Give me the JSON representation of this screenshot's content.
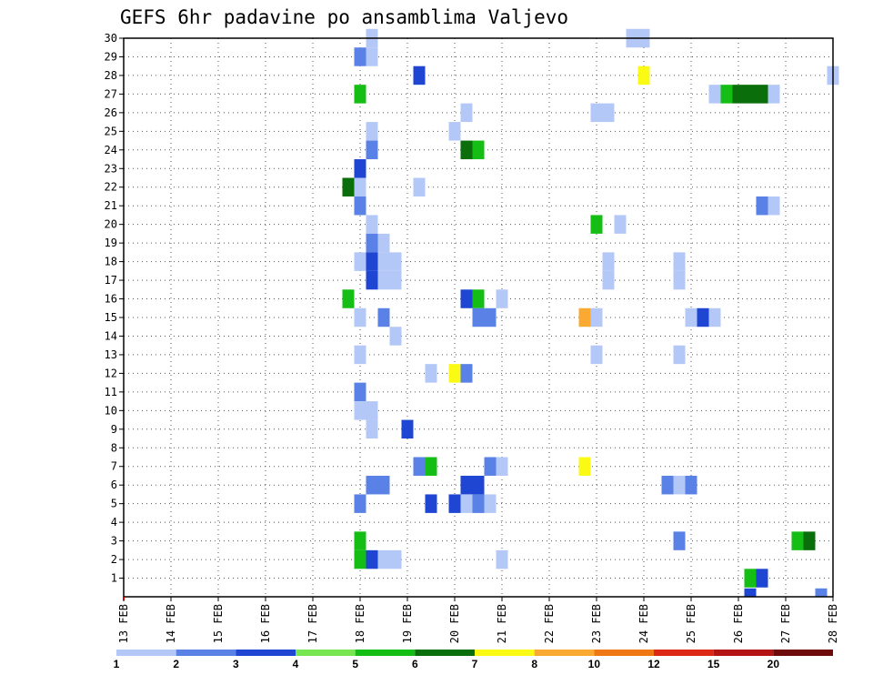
{
  "chart_data": {
    "type": "heatmap",
    "title": "GEFS 6hr padavine po ansamblima Valjevo",
    "xlabel": "",
    "ylabel": "",
    "x_ticks": [
      "13 FEB",
      "14 FEB",
      "15 FEB",
      "16 FEB",
      "17 FEB",
      "18 FEB",
      "19 FEB",
      "20 FEB",
      "21 FEB",
      "22 FEB",
      "23 FEB",
      "24 FEB",
      "25 FEB",
      "26 FEB",
      "27 FEB",
      "28 FEB"
    ],
    "y_ticks": [
      1,
      2,
      3,
      4,
      5,
      6,
      7,
      8,
      9,
      10,
      11,
      12,
      13,
      14,
      15,
      16,
      17,
      18,
      19,
      20,
      21,
      22,
      23,
      24,
      25,
      26,
      27,
      28,
      29,
      30
    ],
    "xlim": [
      0,
      15
    ],
    "ylim": [
      0,
      30
    ],
    "grid": true,
    "legend": {
      "placement": "bottom",
      "labels": [
        "1",
        "2",
        "3",
        "4",
        "5",
        "6",
        "7",
        "8",
        "10",
        "12",
        "15",
        "20"
      ],
      "colors": [
        "#b4c8f8",
        "#5a82e6",
        "#1e46d2",
        "#78e650",
        "#14be14",
        "#0a6e0a",
        "#fafa14",
        "#faaa32",
        "#f07814",
        "#dc2814",
        "#b41414",
        "#6e0a0a"
      ]
    },
    "cells": [
      {
        "x": 5.25,
        "y": 30,
        "v": 1
      },
      {
        "x": 10.75,
        "y": 30,
        "v": 1
      },
      {
        "x": 11,
        "y": 30,
        "v": 1
      },
      {
        "x": 5,
        "y": 29,
        "v": 2
      },
      {
        "x": 5.25,
        "y": 29,
        "v": 1
      },
      {
        "x": 6.25,
        "y": 28,
        "v": 3
      },
      {
        "x": 11,
        "y": 28,
        "v": 7
      },
      {
        "x": 15,
        "y": 28,
        "v": 1
      },
      {
        "x": 5,
        "y": 27,
        "v": 5
      },
      {
        "x": 12.5,
        "y": 27,
        "v": 1
      },
      {
        "x": 12.75,
        "y": 27,
        "v": 5
      },
      {
        "x": 13,
        "y": 27,
        "v": 6
      },
      {
        "x": 13.25,
        "y": 27,
        "v": 6
      },
      {
        "x": 13.5,
        "y": 27,
        "v": 6
      },
      {
        "x": 13.75,
        "y": 27,
        "v": 1
      },
      {
        "x": 7.25,
        "y": 26,
        "v": 1
      },
      {
        "x": 10,
        "y": 26,
        "v": 1
      },
      {
        "x": 10.25,
        "y": 26,
        "v": 1
      },
      {
        "x": 5.25,
        "y": 25,
        "v": 1
      },
      {
        "x": 7,
        "y": 25,
        "v": 1
      },
      {
        "x": 5.25,
        "y": 24,
        "v": 2
      },
      {
        "x": 7.25,
        "y": 24,
        "v": 6
      },
      {
        "x": 7.5,
        "y": 24,
        "v": 5
      },
      {
        "x": 5,
        "y": 23,
        "v": 3
      },
      {
        "x": 4.75,
        "y": 22,
        "v": 6
      },
      {
        "x": 5,
        "y": 22,
        "v": 1
      },
      {
        "x": 6.25,
        "y": 22,
        "v": 1
      },
      {
        "x": 5,
        "y": 21,
        "v": 2
      },
      {
        "x": 13.5,
        "y": 21,
        "v": 2
      },
      {
        "x": 13.75,
        "y": 21,
        "v": 1
      },
      {
        "x": 5.25,
        "y": 20,
        "v": 1
      },
      {
        "x": 10,
        "y": 20,
        "v": 5
      },
      {
        "x": 10.5,
        "y": 20,
        "v": 1
      },
      {
        "x": 5.25,
        "y": 19,
        "v": 2
      },
      {
        "x": 5.5,
        "y": 19,
        "v": 1
      },
      {
        "x": 5,
        "y": 18,
        "v": 1
      },
      {
        "x": 5.25,
        "y": 18,
        "v": 3
      },
      {
        "x": 5.5,
        "y": 18,
        "v": 1
      },
      {
        "x": 5.75,
        "y": 18,
        "v": 1
      },
      {
        "x": 10.25,
        "y": 18,
        "v": 1
      },
      {
        "x": 11.75,
        "y": 18,
        "v": 1
      },
      {
        "x": 5.25,
        "y": 17,
        "v": 3
      },
      {
        "x": 5.5,
        "y": 17,
        "v": 1
      },
      {
        "x": 5.75,
        "y": 17,
        "v": 1
      },
      {
        "x": 10.25,
        "y": 17,
        "v": 1
      },
      {
        "x": 11.75,
        "y": 17,
        "v": 1
      },
      {
        "x": 4.75,
        "y": 16,
        "v": 5
      },
      {
        "x": 7.25,
        "y": 16,
        "v": 3
      },
      {
        "x": 7.5,
        "y": 16,
        "v": 5
      },
      {
        "x": 8,
        "y": 16,
        "v": 1
      },
      {
        "x": 5,
        "y": 15,
        "v": 1
      },
      {
        "x": 5.5,
        "y": 15,
        "v": 2
      },
      {
        "x": 7.5,
        "y": 15,
        "v": 2
      },
      {
        "x": 7.75,
        "y": 15,
        "v": 2
      },
      {
        "x": 9.75,
        "y": 15,
        "v": 8
      },
      {
        "x": 10,
        "y": 15,
        "v": 1
      },
      {
        "x": 12,
        "y": 15,
        "v": 1
      },
      {
        "x": 12.25,
        "y": 15,
        "v": 3
      },
      {
        "x": 12.5,
        "y": 15,
        "v": 1
      },
      {
        "x": 5.75,
        "y": 14,
        "v": 1
      },
      {
        "x": 5,
        "y": 13,
        "v": 1
      },
      {
        "x": 10,
        "y": 13,
        "v": 1
      },
      {
        "x": 11.75,
        "y": 13,
        "v": 1
      },
      {
        "x": 6.5,
        "y": 12,
        "v": 1
      },
      {
        "x": 7,
        "y": 12,
        "v": 7
      },
      {
        "x": 7.25,
        "y": 12,
        "v": 2
      },
      {
        "x": 5,
        "y": 11,
        "v": 2
      },
      {
        "x": 5,
        "y": 10,
        "v": 1
      },
      {
        "x": 5.25,
        "y": 10,
        "v": 1
      },
      {
        "x": 5.25,
        "y": 9,
        "v": 1
      },
      {
        "x": 6,
        "y": 9,
        "v": 3
      },
      {
        "x": 6.25,
        "y": 7,
        "v": 2
      },
      {
        "x": 6.5,
        "y": 7,
        "v": 5
      },
      {
        "x": 7.75,
        "y": 7,
        "v": 2
      },
      {
        "x": 8,
        "y": 7,
        "v": 1
      },
      {
        "x": 9.75,
        "y": 7,
        "v": 7
      },
      {
        "x": 5.25,
        "y": 6,
        "v": 2
      },
      {
        "x": 5.5,
        "y": 6,
        "v": 2
      },
      {
        "x": 7.25,
        "y": 6,
        "v": 3
      },
      {
        "x": 7.5,
        "y": 6,
        "v": 3
      },
      {
        "x": 11.5,
        "y": 6,
        "v": 2
      },
      {
        "x": 11.75,
        "y": 6,
        "v": 1
      },
      {
        "x": 12,
        "y": 6,
        "v": 2
      },
      {
        "x": 5,
        "y": 5,
        "v": 2
      },
      {
        "x": 6.5,
        "y": 5,
        "v": 3
      },
      {
        "x": 7,
        "y": 5,
        "v": 3
      },
      {
        "x": 7.25,
        "y": 5,
        "v": 1
      },
      {
        "x": 7.5,
        "y": 5,
        "v": 2
      },
      {
        "x": 7.75,
        "y": 5,
        "v": 1
      },
      {
        "x": 5,
        "y": 3,
        "v": 5
      },
      {
        "x": 11.75,
        "y": 3,
        "v": 2
      },
      {
        "x": 14.25,
        "y": 3,
        "v": 5
      },
      {
        "x": 14.5,
        "y": 3,
        "v": 6
      },
      {
        "x": 5,
        "y": 2,
        "v": 5
      },
      {
        "x": 5.25,
        "y": 2,
        "v": 3
      },
      {
        "x": 5.5,
        "y": 2,
        "v": 1
      },
      {
        "x": 5.75,
        "y": 2,
        "v": 1
      },
      {
        "x": 8,
        "y": 2,
        "v": 1
      },
      {
        "x": 13.25,
        "y": 1,
        "v": 5
      },
      {
        "x": 13.5,
        "y": 1,
        "v": 3
      },
      {
        "x": 13.25,
        "y": 0,
        "v": 3
      },
      {
        "x": 14.75,
        "y": 0,
        "v": 2
      }
    ]
  }
}
